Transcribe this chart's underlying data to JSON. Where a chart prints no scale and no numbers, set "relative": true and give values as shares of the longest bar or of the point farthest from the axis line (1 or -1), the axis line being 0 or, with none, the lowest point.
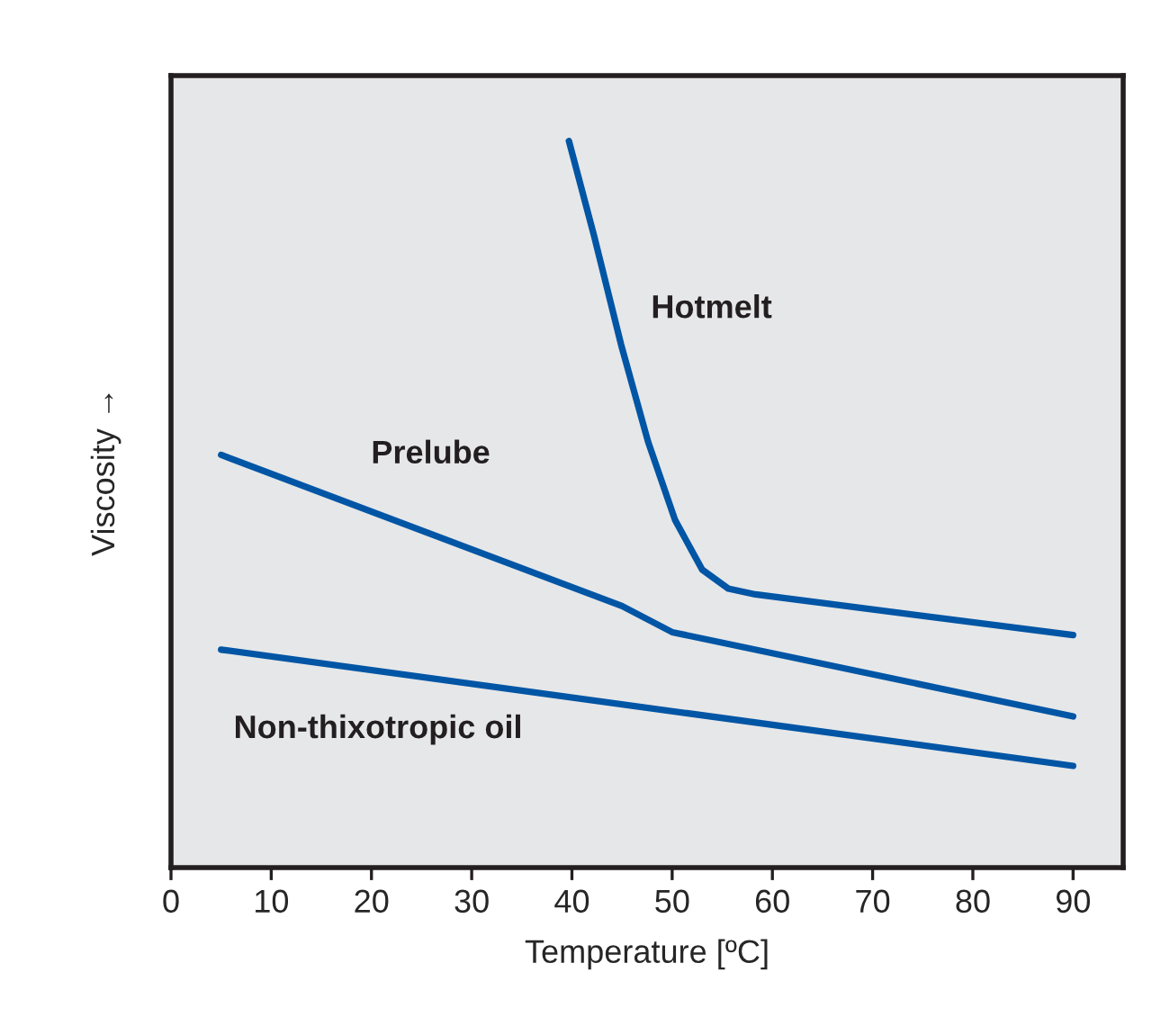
{
  "chart_data": {
    "type": "line",
    "relative": true,
    "xlabel": "Temperature [ºC]",
    "ylabel": "Viscosity →",
    "xlim": [
      0,
      95
    ],
    "xticks": [
      0,
      10,
      20,
      30,
      40,
      50,
      60,
      70,
      80,
      90
    ],
    "grid": false,
    "legend": false,
    "marker": "none",
    "line_style": "solid",
    "series": [
      {
        "name": "Hotmelt",
        "color": "#0055a5",
        "x": [
          39.7,
          42.2,
          44.9,
          47.6,
          50.3,
          53,
          55.6,
          58.3,
          90
        ],
        "values": [
          1.0,
          0.87,
          0.72,
          0.586,
          0.478,
          0.41,
          0.384,
          0.376,
          0.32
        ]
      },
      {
        "name": "Prelube",
        "color": "#0055a5",
        "x": [
          5,
          45,
          50,
          90
        ],
        "values": [
          0.568,
          0.36,
          0.324,
          0.208
        ]
      },
      {
        "name": "Non-thixotropic oil",
        "color": "#0055a5",
        "x": [
          5,
          90
        ],
        "values": [
          0.3,
          0.14
        ]
      }
    ]
  }
}
